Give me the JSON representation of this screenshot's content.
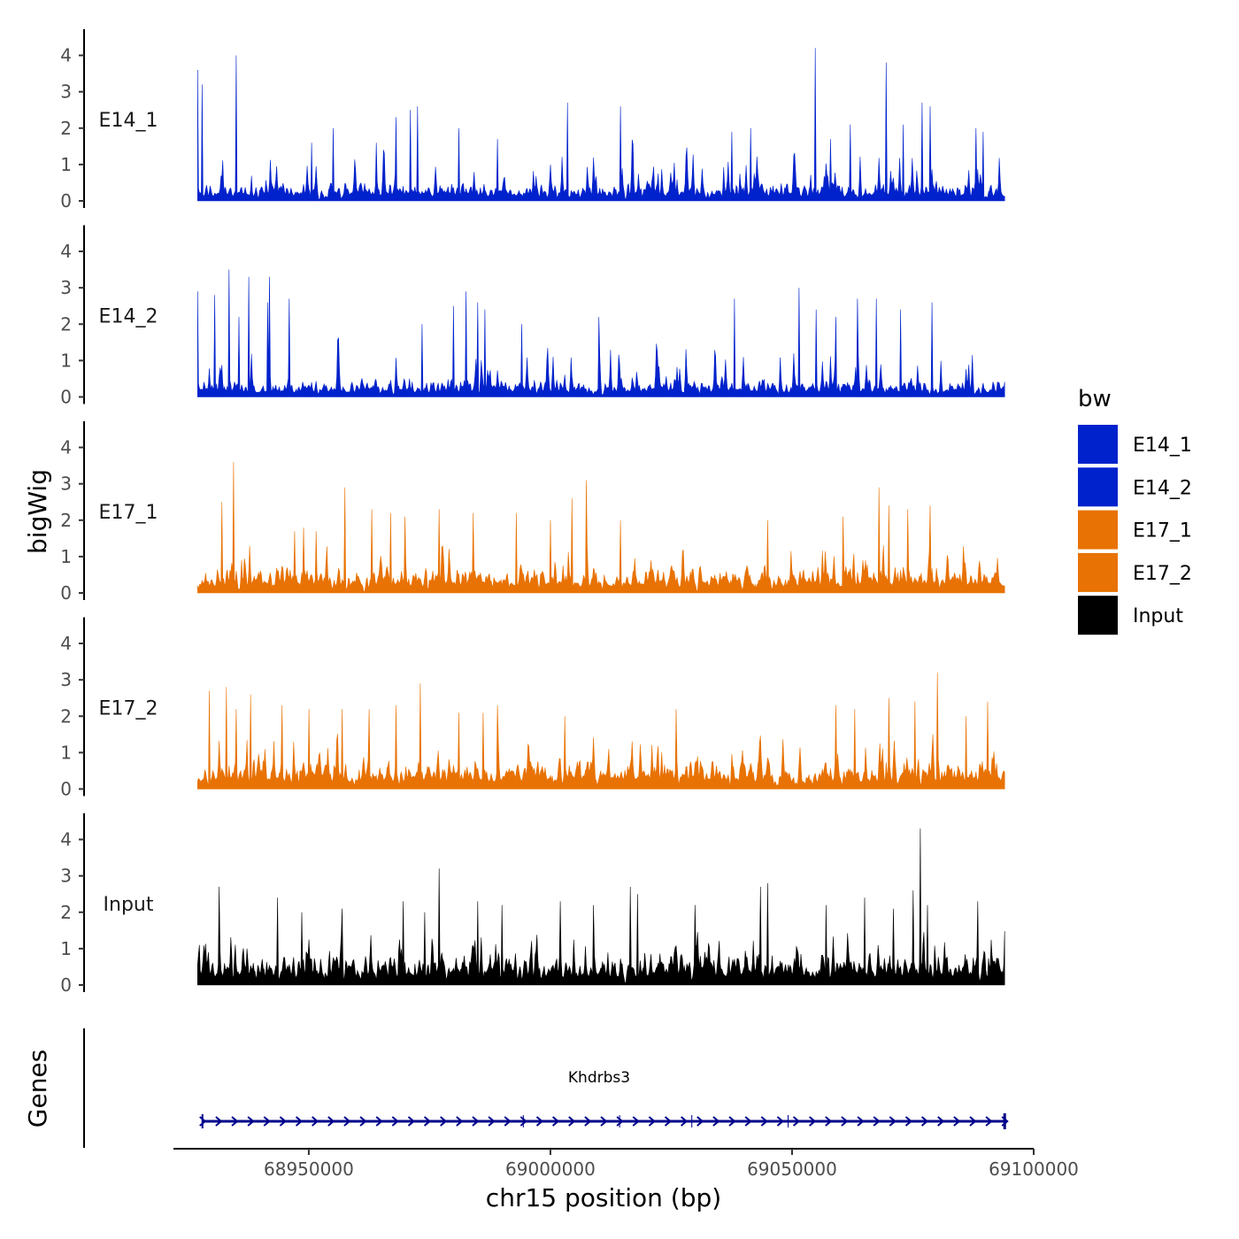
{
  "chart_data": {
    "type": "area",
    "title": "",
    "ylabel": "bigWig",
    "xlabel": "chr15 position (bp)",
    "xlim": [
      68922000,
      69100000
    ],
    "data_x_range": [
      68927000,
      69094000
    ],
    "ylim": [
      0,
      4.5
    ],
    "y_ticks": [
      0,
      1,
      2,
      3,
      4
    ],
    "x_ticks": [
      68950000,
      69000000,
      69050000,
      69100000
    ],
    "x_tick_labels": [
      "68950000",
      "69000000",
      "69050000",
      "69100000"
    ],
    "grid": false,
    "legend": {
      "title": "bw",
      "position": "right",
      "entries": [
        {
          "name": "E14_1",
          "color": "#0022CC"
        },
        {
          "name": "E14_2",
          "color": "#0022CC"
        },
        {
          "name": "E17_1",
          "color": "#E87203"
        },
        {
          "name": "E17_2",
          "color": "#E87203"
        },
        {
          "name": "Input",
          "color": "#000000"
        }
      ]
    },
    "series": [
      {
        "name": "E14_1",
        "color": "#0022CC",
        "seed": 11,
        "base": 0.45,
        "spike": 1.6,
        "peaks": [
          [
            68927000,
            3.6
          ],
          [
            68927900,
            3.2
          ],
          [
            68935000,
            4.0
          ],
          [
            68950500,
            1.6
          ],
          [
            68955000,
            2.0
          ],
          [
            68964000,
            1.6
          ],
          [
            68968000,
            2.3
          ],
          [
            68971000,
            2.5
          ],
          [
            68972500,
            2.6
          ],
          [
            68981000,
            2.0
          ],
          [
            68989000,
            1.7
          ],
          [
            69003500,
            2.7
          ],
          [
            69014500,
            2.6
          ],
          [
            69037500,
            1.9
          ],
          [
            69041500,
            2.0
          ],
          [
            69054800,
            4.2
          ],
          [
            69058000,
            1.7
          ],
          [
            69062000,
            2.1
          ],
          [
            69069500,
            3.8
          ],
          [
            69073000,
            2.1
          ],
          [
            69077000,
            2.7
          ],
          [
            69078500,
            2.6
          ],
          [
            69088000,
            2.0
          ],
          [
            69089500,
            1.9
          ]
        ]
      },
      {
        "name": "E14_2",
        "color": "#0022CC",
        "seed": 23,
        "base": 0.45,
        "spike": 1.6,
        "peaks": [
          [
            68927000,
            2.9
          ],
          [
            68930500,
            2.8
          ],
          [
            68933500,
            3.5
          ],
          [
            68935500,
            2.2
          ],
          [
            68937500,
            3.3
          ],
          [
            68941500,
            2.6
          ],
          [
            68941900,
            3.3
          ],
          [
            68946000,
            2.7
          ],
          [
            68973500,
            2.0
          ],
          [
            68980000,
            2.5
          ],
          [
            68982500,
            2.9
          ],
          [
            68985000,
            2.6
          ],
          [
            68986500,
            2.4
          ],
          [
            68994000,
            2.0
          ],
          [
            69010000,
            2.2
          ],
          [
            69038000,
            2.7
          ],
          [
            69051500,
            3.0
          ],
          [
            69055000,
            2.4
          ],
          [
            69059000,
            2.2
          ],
          [
            69063500,
            2.7
          ],
          [
            69067500,
            2.7
          ],
          [
            69072500,
            2.4
          ],
          [
            69079000,
            2.6
          ]
        ]
      },
      {
        "name": "E17_1",
        "color": "#E87203",
        "seed": 37,
        "base": 0.65,
        "spike": 1.4,
        "peaks": [
          [
            68932000,
            2.5
          ],
          [
            68934500,
            3.6
          ],
          [
            68947000,
            1.7
          ],
          [
            68949000,
            1.8
          ],
          [
            68951500,
            1.7
          ],
          [
            68957500,
            2.9
          ],
          [
            68963000,
            2.3
          ],
          [
            68967000,
            2.2
          ],
          [
            68970000,
            2.1
          ],
          [
            68977000,
            2.3
          ],
          [
            68984000,
            2.2
          ],
          [
            68993000,
            2.2
          ],
          [
            69000000,
            2.0
          ],
          [
            69004500,
            2.6
          ],
          [
            69007500,
            3.1
          ],
          [
            69014500,
            2.0
          ],
          [
            69045000,
            2.0
          ],
          [
            69060500,
            2.1
          ],
          [
            69068000,
            2.9
          ],
          [
            69070000,
            2.4
          ],
          [
            69074000,
            2.3
          ],
          [
            69078500,
            2.4
          ]
        ]
      },
      {
        "name": "E17_2",
        "color": "#E87203",
        "seed": 53,
        "base": 0.7,
        "spike": 1.4,
        "peaks": [
          [
            68929500,
            2.7
          ],
          [
            68933000,
            2.8
          ],
          [
            68935000,
            2.2
          ],
          [
            68938000,
            2.6
          ],
          [
            68944500,
            2.3
          ],
          [
            68950000,
            2.2
          ],
          [
            68957000,
            2.2
          ],
          [
            68962500,
            2.2
          ],
          [
            68968000,
            2.3
          ],
          [
            68973000,
            2.9
          ],
          [
            68981000,
            2.1
          ],
          [
            68986000,
            2.1
          ],
          [
            68989000,
            2.3
          ],
          [
            69003000,
            2.0
          ],
          [
            69026000,
            2.2
          ],
          [
            69059000,
            2.3
          ],
          [
            69063000,
            2.2
          ],
          [
            69070000,
            2.5
          ],
          [
            69075500,
            2.4
          ],
          [
            69080000,
            3.2
          ],
          [
            69086000,
            2.0
          ],
          [
            69090500,
            2.4
          ]
        ]
      },
      {
        "name": "Input",
        "color": "#000000",
        "seed": 71,
        "base": 0.8,
        "spike": 1.2,
        "peaks": [
          [
            68931500,
            2.7
          ],
          [
            68943500,
            2.4
          ],
          [
            68948500,
            2.0
          ],
          [
            68957000,
            2.1
          ],
          [
            68969500,
            2.3
          ],
          [
            68974000,
            2.0
          ],
          [
            68977000,
            3.2
          ],
          [
            68985000,
            2.3
          ],
          [
            68990000,
            2.2
          ],
          [
            69002000,
            2.3
          ],
          [
            69009000,
            2.2
          ],
          [
            69016500,
            2.7
          ],
          [
            69018000,
            2.5
          ],
          [
            69030000,
            2.2
          ],
          [
            69043500,
            2.7
          ],
          [
            69045000,
            2.8
          ],
          [
            69057000,
            2.2
          ],
          [
            69065000,
            2.4
          ],
          [
            69071000,
            2.1
          ],
          [
            69075000,
            2.6
          ],
          [
            69076500,
            4.3
          ],
          [
            69078000,
            2.2
          ],
          [
            69088500,
            2.3
          ]
        ]
      }
    ],
    "genes": [
      {
        "name": "Khdrbs3",
        "start": 68928000,
        "end": 69094000,
        "strand": "+",
        "color": "#00008B"
      }
    ],
    "gene_track_label": "Genes"
  }
}
